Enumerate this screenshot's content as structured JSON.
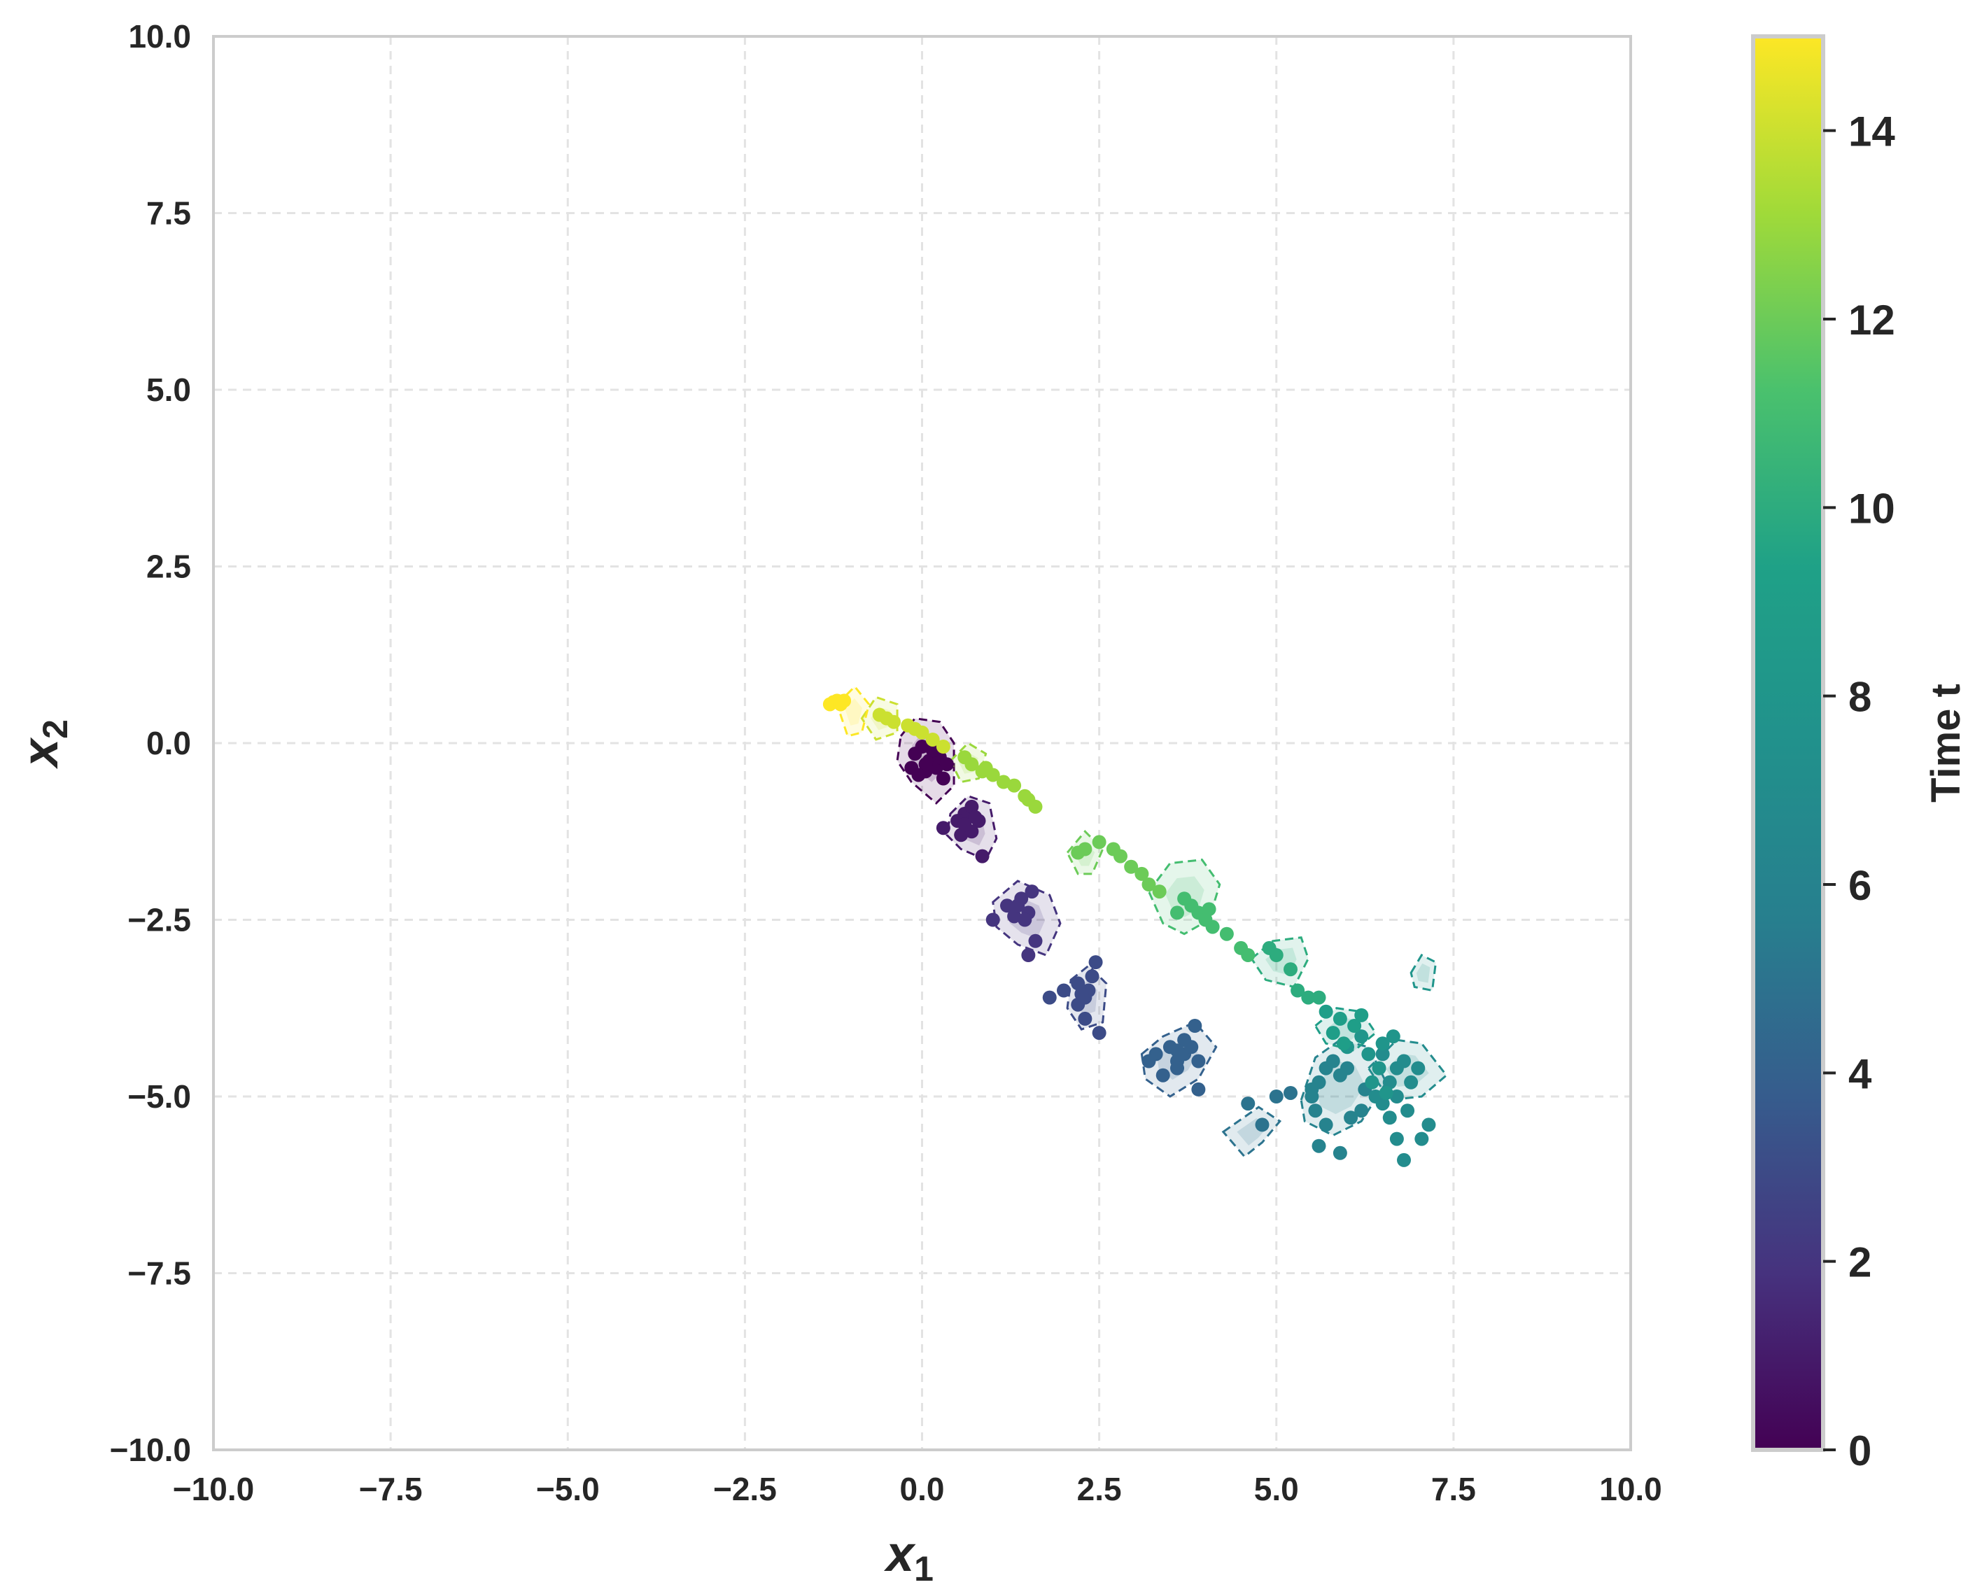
{
  "chart_data": {
    "type": "scatter",
    "title": "",
    "xlabel": "x",
    "xlabel_sub": "1",
    "ylabel": "x",
    "ylabel_sub": "2",
    "xlim": [
      -10,
      10
    ],
    "ylim": [
      -10,
      10
    ],
    "x_ticks": [
      -10,
      -7.5,
      -5,
      -2.5,
      0,
      2.5,
      5,
      7.5,
      10
    ],
    "y_ticks": [
      -10,
      -7.5,
      -5,
      -2.5,
      0,
      2.5,
      5,
      7.5,
      10
    ],
    "x_tick_labels": [
      "−10.0",
      "−7.5",
      "−5.0",
      "−2.5",
      "0.0",
      "2.5",
      "5.0",
      "7.5",
      "10.0"
    ],
    "y_tick_labels": [
      "−10.0",
      "−7.5",
      "−5.0",
      "−2.5",
      "0.0",
      "2.5",
      "5.0",
      "7.5",
      "10.0"
    ],
    "grid": true,
    "grid_style": "dashed",
    "colormap": "viridis",
    "colorbar": {
      "label": "Time t",
      "range": [
        0,
        15
      ],
      "ticks": [
        0,
        2,
        4,
        6,
        8,
        10,
        12,
        14
      ],
      "tick_labels": [
        "0",
        "2",
        "4",
        "6",
        "8",
        "10",
        "12",
        "14"
      ]
    },
    "clusters": [
      {
        "t": 0,
        "points": [
          [
            0.0,
            -0.05
          ],
          [
            0.1,
            -0.25
          ],
          [
            -0.1,
            -0.15
          ],
          [
            0.2,
            -0.35
          ],
          [
            0.05,
            -0.4
          ],
          [
            -0.15,
            -0.35
          ],
          [
            0.25,
            -0.2
          ],
          [
            0.3,
            -0.5
          ],
          [
            0.15,
            -0.1
          ],
          [
            0.35,
            -0.3
          ],
          [
            0.05,
            -0.3
          ],
          [
            -0.05,
            -0.45
          ]
        ],
        "contour": [
          [
            -0.3,
            0.1
          ],
          [
            -0.1,
            0.35
          ],
          [
            0.25,
            0.3
          ],
          [
            0.45,
            0.0
          ],
          [
            0.45,
            -0.6
          ],
          [
            0.2,
            -0.85
          ],
          [
            -0.15,
            -0.55
          ],
          [
            -0.35,
            -0.25
          ]
        ]
      },
      {
        "t": 1,
        "points": [
          [
            0.6,
            -1.0
          ],
          [
            0.7,
            -0.9
          ],
          [
            0.5,
            -1.1
          ],
          [
            0.8,
            -1.1
          ],
          [
            0.7,
            -1.25
          ],
          [
            0.55,
            -1.3
          ],
          [
            0.3,
            -1.2
          ],
          [
            0.85,
            -1.6
          ],
          [
            0.75,
            -1.05
          ],
          [
            0.6,
            -1.15
          ]
        ],
        "contour": [
          [
            0.4,
            -1.0
          ],
          [
            0.65,
            -0.75
          ],
          [
            0.95,
            -0.85
          ],
          [
            1.05,
            -1.35
          ],
          [
            0.9,
            -1.65
          ],
          [
            0.55,
            -1.5
          ],
          [
            0.35,
            -1.3
          ]
        ]
      },
      {
        "t": 2,
        "points": [
          [
            1.2,
            -2.3
          ],
          [
            1.4,
            -2.2
          ],
          [
            1.5,
            -2.4
          ],
          [
            1.3,
            -2.45
          ],
          [
            1.55,
            -2.1
          ],
          [
            1.45,
            -2.5
          ],
          [
            1.6,
            -2.8
          ],
          [
            1.0,
            -2.5
          ],
          [
            1.35,
            -2.3
          ],
          [
            1.5,
            -3.0
          ]
        ],
        "contour": [
          [
            1.0,
            -2.25
          ],
          [
            1.35,
            -1.95
          ],
          [
            1.8,
            -2.15
          ],
          [
            1.95,
            -2.55
          ],
          [
            1.75,
            -3.0
          ],
          [
            1.35,
            -2.85
          ],
          [
            1.05,
            -2.6
          ]
        ]
      },
      {
        "t": 3,
        "points": [
          [
            2.2,
            -3.4
          ],
          [
            2.3,
            -3.6
          ],
          [
            2.4,
            -3.3
          ],
          [
            2.2,
            -3.7
          ],
          [
            2.35,
            -3.5
          ],
          [
            2.45,
            -3.1
          ],
          [
            2.0,
            -3.5
          ],
          [
            1.8,
            -3.6
          ],
          [
            2.5,
            -4.1
          ],
          [
            2.3,
            -3.9
          ],
          [
            2.25,
            -3.55
          ]
        ],
        "contour": [
          [
            2.1,
            -3.35
          ],
          [
            2.35,
            -3.15
          ],
          [
            2.6,
            -3.4
          ],
          [
            2.55,
            -3.95
          ],
          [
            2.25,
            -4.05
          ],
          [
            2.05,
            -3.75
          ]
        ]
      },
      {
        "t": 4,
        "points": [
          [
            3.5,
            -4.3
          ],
          [
            3.6,
            -4.5
          ],
          [
            3.7,
            -4.4
          ],
          [
            3.8,
            -4.3
          ],
          [
            3.6,
            -4.6
          ],
          [
            3.3,
            -4.4
          ],
          [
            3.2,
            -4.5
          ],
          [
            3.4,
            -4.7
          ],
          [
            3.9,
            -4.5
          ],
          [
            3.85,
            -4.0
          ],
          [
            3.7,
            -4.2
          ],
          [
            3.9,
            -4.9
          ],
          [
            3.6,
            -4.35
          ]
        ],
        "contour": [
          [
            3.1,
            -4.4
          ],
          [
            3.4,
            -4.15
          ],
          [
            3.85,
            -3.95
          ],
          [
            4.15,
            -4.3
          ],
          [
            3.9,
            -4.75
          ],
          [
            3.5,
            -5.0
          ],
          [
            3.15,
            -4.75
          ]
        ]
      },
      {
        "t": 5,
        "points": [
          [
            4.8,
            -5.4
          ],
          [
            5.0,
            -5.0
          ],
          [
            5.2,
            -4.95
          ],
          [
            4.6,
            -5.1
          ]
        ],
        "contour": [
          [
            4.25,
            -5.5
          ],
          [
            4.75,
            -5.15
          ],
          [
            5.05,
            -5.35
          ],
          [
            4.8,
            -5.65
          ],
          [
            4.55,
            -5.85
          ]
        ]
      },
      {
        "t": 6,
        "points": [
          [
            5.6,
            -4.8
          ],
          [
            5.7,
            -4.6
          ],
          [
            5.9,
            -4.7
          ],
          [
            5.5,
            -4.9
          ],
          [
            5.8,
            -4.5
          ],
          [
            6.0,
            -4.6
          ],
          [
            5.55,
            -5.2
          ],
          [
            5.7,
            -5.4
          ],
          [
            5.6,
            -5.7
          ],
          [
            5.9,
            -5.8
          ],
          [
            6.05,
            -5.3
          ],
          [
            6.2,
            -5.2
          ],
          [
            5.5,
            -5.0
          ],
          [
            6.25,
            -4.9
          ]
        ],
        "contour": [
          [
            5.35,
            -5.05
          ],
          [
            5.55,
            -4.45
          ],
          [
            5.9,
            -4.2
          ],
          [
            6.3,
            -4.3
          ],
          [
            6.55,
            -4.8
          ],
          [
            6.2,
            -5.35
          ],
          [
            5.8,
            -5.55
          ],
          [
            5.4,
            -5.35
          ]
        ]
      },
      {
        "t": 7,
        "points": [
          [
            6.5,
            -4.4
          ],
          [
            6.7,
            -4.6
          ],
          [
            6.9,
            -4.8
          ],
          [
            6.6,
            -4.8
          ],
          [
            6.8,
            -4.5
          ],
          [
            7.0,
            -4.6
          ],
          [
            6.7,
            -5.0
          ],
          [
            6.5,
            -5.1
          ],
          [
            7.15,
            -5.4
          ],
          [
            7.05,
            -5.6
          ],
          [
            6.8,
            -5.9
          ],
          [
            6.6,
            -5.3
          ],
          [
            6.85,
            -5.2
          ],
          [
            6.4,
            -5.0
          ],
          [
            6.7,
            -5.6
          ]
        ],
        "contour": [
          [
            6.3,
            -4.6
          ],
          [
            6.7,
            -4.2
          ],
          [
            7.05,
            -4.25
          ],
          [
            7.4,
            -4.7
          ],
          [
            7.05,
            -5.0
          ],
          [
            6.6,
            -5.05
          ]
        ]
      },
      {
        "t": 8,
        "points": [
          [
            6.0,
            -4.3
          ],
          [
            6.2,
            -4.15
          ],
          [
            6.3,
            -4.4
          ],
          [
            6.45,
            -4.6
          ],
          [
            6.5,
            -4.25
          ],
          [
            6.65,
            -4.15
          ],
          [
            6.35,
            -4.8
          ],
          [
            6.55,
            -4.95
          ]
        ],
        "contour": [
          [
            6.9,
            -3.25
          ],
          [
            7.05,
            -3.0
          ],
          [
            7.25,
            -3.1
          ],
          [
            7.2,
            -3.5
          ],
          [
            6.95,
            -3.45
          ]
        ]
      },
      {
        "t": 9,
        "points": [
          [
            5.7,
            -3.8
          ],
          [
            5.9,
            -3.9
          ],
          [
            6.1,
            -4.0
          ],
          [
            5.8,
            -4.1
          ],
          [
            6.2,
            -3.85
          ],
          [
            5.95,
            -4.25
          ]
        ],
        "contour": [
          [
            5.55,
            -4.0
          ],
          [
            5.85,
            -3.75
          ],
          [
            6.2,
            -3.8
          ],
          [
            6.4,
            -4.1
          ],
          [
            6.1,
            -4.35
          ],
          [
            5.7,
            -4.25
          ]
        ]
      },
      {
        "t": 10,
        "points": [
          [
            5.0,
            -3.0
          ],
          [
            5.2,
            -3.2
          ],
          [
            5.3,
            -3.5
          ],
          [
            5.45,
            -3.6
          ],
          [
            5.6,
            -3.6
          ],
          [
            4.9,
            -2.9
          ]
        ],
        "contour": [
          [
            4.65,
            -3.05
          ],
          [
            4.95,
            -2.8
          ],
          [
            5.35,
            -2.75
          ],
          [
            5.45,
            -3.05
          ],
          [
            5.25,
            -3.45
          ],
          [
            4.85,
            -3.35
          ]
        ]
      },
      {
        "t": 11,
        "points": [
          [
            3.7,
            -2.2
          ],
          [
            3.9,
            -2.4
          ],
          [
            4.0,
            -2.5
          ],
          [
            4.1,
            -2.6
          ],
          [
            4.3,
            -2.7
          ],
          [
            4.5,
            -2.9
          ],
          [
            4.6,
            -3.0
          ],
          [
            3.6,
            -2.4
          ],
          [
            3.8,
            -2.3
          ],
          [
            4.05,
            -2.35
          ]
        ],
        "contour": [
          [
            3.2,
            -2.1
          ],
          [
            3.5,
            -1.7
          ],
          [
            3.95,
            -1.65
          ],
          [
            4.2,
            -2.0
          ],
          [
            4.05,
            -2.5
          ],
          [
            3.7,
            -2.7
          ],
          [
            3.4,
            -2.55
          ]
        ]
      },
      {
        "t": 12,
        "points": [
          [
            2.5,
            -1.4
          ],
          [
            2.7,
            -1.5
          ],
          [
            2.8,
            -1.6
          ],
          [
            2.95,
            -1.75
          ],
          [
            3.1,
            -1.85
          ],
          [
            3.2,
            -2.0
          ],
          [
            3.35,
            -2.1
          ],
          [
            2.3,
            -1.5
          ],
          [
            2.2,
            -1.55
          ]
        ],
        "contour": [
          [
            2.05,
            -1.55
          ],
          [
            2.3,
            -1.25
          ],
          [
            2.55,
            -1.5
          ],
          [
            2.4,
            -1.85
          ],
          [
            2.2,
            -1.85
          ]
        ]
      },
      {
        "t": 13,
        "points": [
          [
            0.6,
            -0.2
          ],
          [
            0.7,
            -0.3
          ],
          [
            0.85,
            -0.4
          ],
          [
            1.0,
            -0.45
          ],
          [
            1.15,
            -0.55
          ],
          [
            1.3,
            -0.6
          ],
          [
            1.45,
            -0.75
          ],
          [
            1.6,
            -0.9
          ],
          [
            0.9,
            -0.35
          ],
          [
            1.5,
            -0.8
          ]
        ],
        "contour": [
          [
            0.4,
            -0.25
          ],
          [
            0.65,
            0.0
          ],
          [
            0.9,
            -0.15
          ],
          [
            0.8,
            -0.5
          ],
          [
            0.55,
            -0.55
          ]
        ]
      },
      {
        "t": 14,
        "points": [
          [
            -0.6,
            0.4
          ],
          [
            -0.4,
            0.3
          ],
          [
            -0.2,
            0.25
          ],
          [
            0.0,
            0.15
          ],
          [
            0.15,
            0.05
          ],
          [
            0.3,
            -0.05
          ],
          [
            -0.5,
            0.35
          ],
          [
            -0.1,
            0.2
          ]
        ],
        "contour": [
          [
            -0.85,
            0.35
          ],
          [
            -0.65,
            0.65
          ],
          [
            -0.35,
            0.55
          ],
          [
            -0.35,
            0.15
          ],
          [
            -0.65,
            0.05
          ]
        ]
      },
      {
        "t": 15,
        "points": [
          [
            -1.3,
            0.55
          ],
          [
            -1.2,
            0.6
          ],
          [
            -1.1,
            0.6
          ],
          [
            -1.25,
            0.58
          ],
          [
            -1.15,
            0.55
          ]
        ],
        "contour": [
          [
            -1.2,
            0.55
          ],
          [
            -0.95,
            0.8
          ],
          [
            -0.75,
            0.55
          ],
          [
            -0.85,
            0.15
          ],
          [
            -1.05,
            0.1
          ]
        ]
      }
    ]
  }
}
